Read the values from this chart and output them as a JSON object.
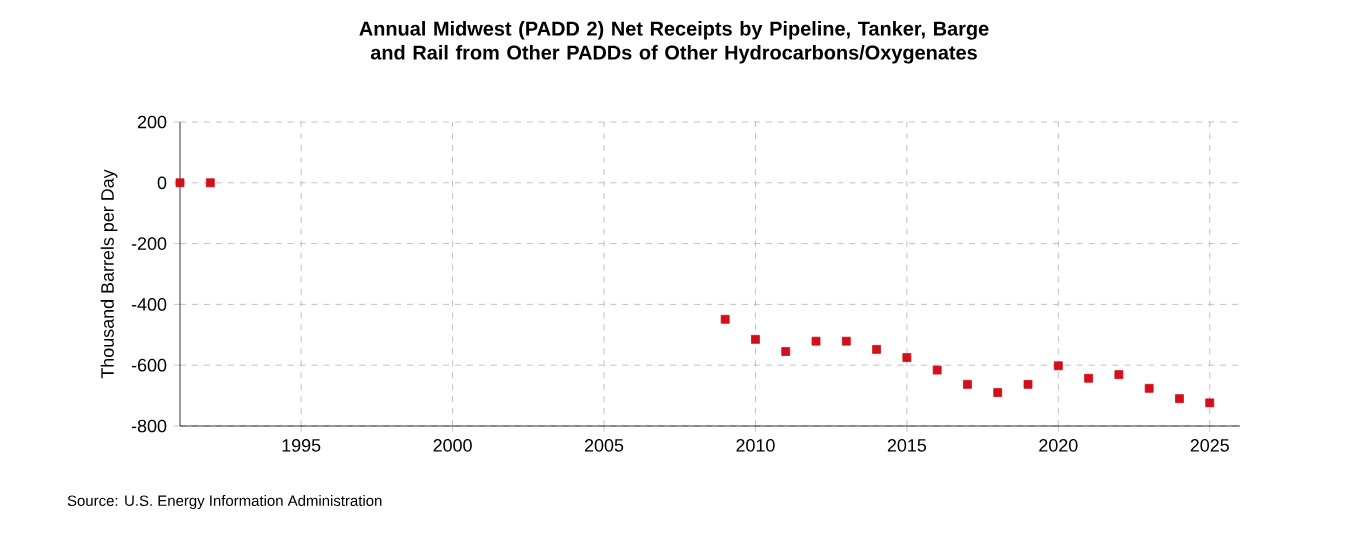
{
  "chart_data": {
    "type": "scatter",
    "title": "Annual Midwest (PADD 2) Net Receipts by Pipeline, Tanker, Barge and Rail from Other PADDs of Other Hydrocarbons/Oxygenates",
    "ylabel": "Thousand Barrels per Day",
    "annotations": [
      "Source: U.S. Energy Information Administration"
    ],
    "x": [
      1991,
      1992,
      2009,
      2010,
      2011,
      2012,
      2013,
      2014,
      2015,
      2016,
      2017,
      2018,
      2019,
      2020,
      2021,
      2022,
      2023,
      2024,
      2025
    ],
    "series": [
      {
        "color": "#d0101c",
        "values": [
          0,
          0,
          -449,
          -515,
          -555,
          -521,
          -521,
          -548,
          -575,
          -616,
          -663,
          -690,
          -663,
          -602,
          -643,
          -631,
          -676,
          -710,
          -724
        ]
      }
    ],
    "xlim": [
      1991,
      2026
    ],
    "xticks": [
      1995,
      2000,
      2005,
      2010,
      2015,
      2020,
      2025
    ],
    "ylim": [
      -800,
      200
    ],
    "yticks": [
      -800,
      -600,
      -400,
      -200,
      0,
      200
    ],
    "grid": true,
    "marker": "square"
  }
}
